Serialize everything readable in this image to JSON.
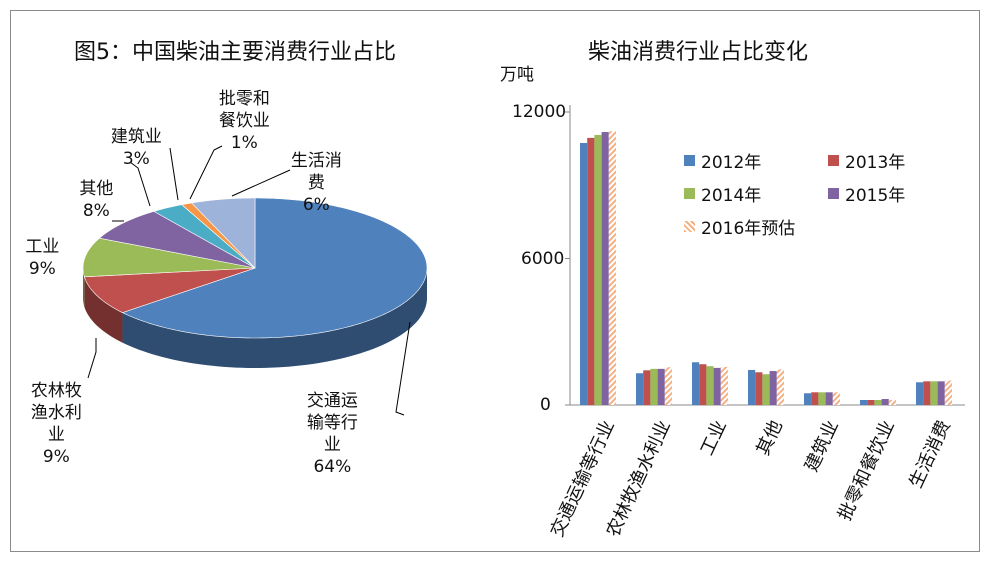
{
  "chart_data": [
    {
      "type": "pie",
      "title": "图5：中国柴油主要消费行业占比",
      "slices": [
        {
          "name": "交通运输等行业",
          "value": 64,
          "label": "64%",
          "color": "#4F81BD"
        },
        {
          "name": "农林牧渔水利业",
          "value": 9,
          "label": "9%",
          "color": "#C0504D"
        },
        {
          "name": "工业",
          "value": 9,
          "label": "9%",
          "color": "#9BBB59"
        },
        {
          "name": "其他",
          "value": 8,
          "label": "8%",
          "color": "#8064A2"
        },
        {
          "name": "建筑业",
          "value": 3,
          "label": "3%",
          "color": "#4BACC6"
        },
        {
          "name": "批零和餐饮业",
          "value": 1,
          "label": "1%",
          "color": "#F79646"
        },
        {
          "name": "生活消费",
          "value": 6,
          "label": "6%",
          "color": "#9DB3D9"
        }
      ]
    },
    {
      "type": "bar",
      "title": "柴油消费行业占比变化",
      "ylabel": "万吨",
      "ylim": [
        0,
        12000
      ],
      "yticks": [
        "0",
        "6000",
        "12000"
      ],
      "legend": "top-right",
      "grid": false,
      "categories": [
        "交通运输等行业",
        "农林牧渔水利业",
        "工业",
        "其他",
        "建筑业",
        "批零和餐饮业",
        "生活消费"
      ],
      "series": [
        {
          "name": "2012年",
          "color": "#4F81BD",
          "values": [
            10730,
            1300,
            1750,
            1435,
            480,
            205,
            930
          ]
        },
        {
          "name": "2013年",
          "color": "#C0504D",
          "values": [
            10940,
            1420,
            1670,
            1340,
            520,
            205,
            970
          ]
        },
        {
          "name": "2014年",
          "color": "#9BBB59",
          "values": [
            11060,
            1480,
            1590,
            1260,
            520,
            205,
            970
          ]
        },
        {
          "name": "2015年",
          "color": "#8064A2",
          "values": [
            11180,
            1480,
            1520,
            1390,
            520,
            245,
            970
          ]
        },
        {
          "name": "2016年预估",
          "color": "#F9C9A0",
          "hatched": true,
          "values": [
            11210,
            1550,
            1560,
            1460,
            520,
            205,
            1000
          ]
        }
      ]
    }
  ]
}
